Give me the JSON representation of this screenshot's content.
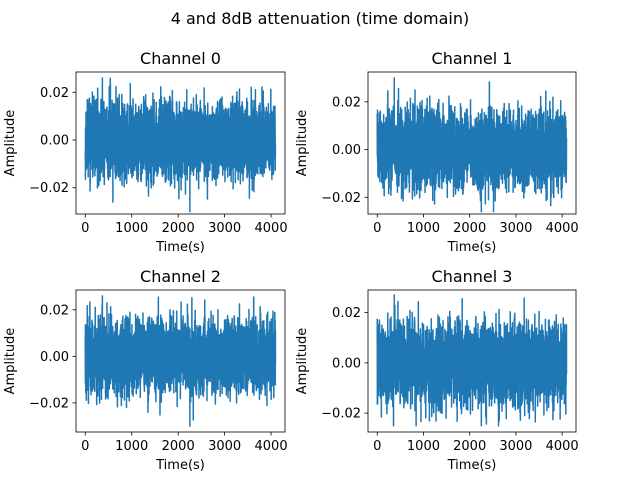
{
  "figure": {
    "suptitle": "4 and 8dB attenuation (time domain)"
  },
  "chart_data": [
    {
      "type": "line",
      "title": "Channel 0",
      "xlabel": "Time(s)",
      "ylabel": "Amplitude",
      "xlim": [
        -200,
        4300
      ],
      "ylim": [
        -0.031,
        0.0285
      ],
      "xticks": [
        0,
        1000,
        2000,
        3000,
        4000
      ],
      "xticklabels": [
        "0",
        "1000",
        "2000",
        "3000",
        "4000"
      ],
      "yticks": [
        -0.02,
        0.0,
        0.02
      ],
      "yticklabels": [
        "−0.02",
        "0.00",
        "0.02"
      ],
      "n_samples": 4096,
      "seed": 11,
      "series": [
        {
          "name": "Channel 0",
          "color": "#1f77b4",
          "x_range": [
            0,
            4095
          ],
          "std": 0.0075,
          "max": 0.026,
          "min": -0.03
        }
      ]
    },
    {
      "type": "line",
      "title": "Channel 1",
      "xlabel": "Time(s)",
      "ylabel": "Amplitude",
      "xlim": [
        -200,
        4300
      ],
      "ylim": [
        -0.027,
        0.0325
      ],
      "xticks": [
        0,
        1000,
        2000,
        3000,
        4000
      ],
      "xticklabels": [
        "0",
        "1000",
        "2000",
        "3000",
        "4000"
      ],
      "yticks": [
        -0.02,
        0.0,
        0.02
      ],
      "yticklabels": [
        "−0.02",
        "0.00",
        "0.02"
      ],
      "n_samples": 4096,
      "seed": 23,
      "series": [
        {
          "name": "Channel 1",
          "color": "#1f77b4",
          "x_range": [
            0,
            4095
          ],
          "std": 0.0075,
          "max": 0.03,
          "min": -0.026
        }
      ]
    },
    {
      "type": "line",
      "title": "Channel 2",
      "xlabel": "Time(s)",
      "ylabel": "Amplitude",
      "xlim": [
        -200,
        4300
      ],
      "ylim": [
        -0.0325,
        0.0285
      ],
      "xticks": [
        0,
        1000,
        2000,
        3000,
        4000
      ],
      "xticklabels": [
        "0",
        "1000",
        "2000",
        "3000",
        "4000"
      ],
      "yticks": [
        -0.02,
        0.0,
        0.02
      ],
      "yticklabels": [
        "−0.02",
        "0.00",
        "0.02"
      ],
      "n_samples": 4096,
      "seed": 37,
      "series": [
        {
          "name": "Channel 2",
          "color": "#1f77b4",
          "x_range": [
            0,
            4095
          ],
          "std": 0.0075,
          "max": 0.026,
          "min": -0.03
        }
      ]
    },
    {
      "type": "line",
      "title": "Channel 3",
      "xlabel": "Time(s)",
      "ylabel": "Amplitude",
      "xlim": [
        -200,
        4300
      ],
      "ylim": [
        -0.0275,
        0.029
      ],
      "xticks": [
        0,
        1000,
        2000,
        3000,
        4000
      ],
      "xticklabels": [
        "0",
        "1000",
        "2000",
        "3000",
        "4000"
      ],
      "yticks": [
        -0.02,
        0.0,
        0.02
      ],
      "yticklabels": [
        "−0.02",
        "0.00",
        "0.02"
      ],
      "n_samples": 4096,
      "seed": 53,
      "series": [
        {
          "name": "Channel 3",
          "color": "#1f77b4",
          "x_range": [
            0,
            4095
          ],
          "std": 0.0075,
          "max": 0.027,
          "min": -0.025
        }
      ]
    }
  ]
}
